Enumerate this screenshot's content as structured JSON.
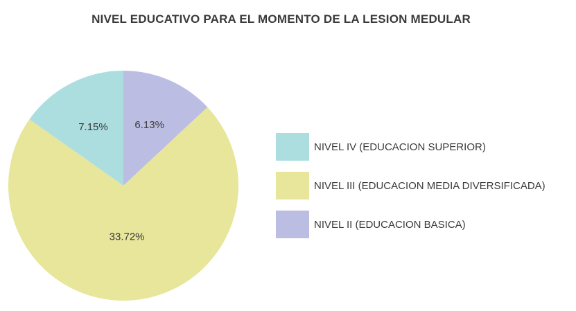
{
  "chart_data": {
    "type": "pie",
    "title": "NIVEL EDUCATIVO PARA EL MOMENTO DE LA LESION MEDULAR",
    "slices": [
      {
        "name": "NIVEL II (EDUCACION BASICA)",
        "value": 6.13,
        "label": "6.13%",
        "color": "#bcbde3"
      },
      {
        "name": "NIVEL III (EDUCACION MEDIA DIVERSIFICADA)",
        "value": 33.72,
        "label": "33.72%",
        "color": "#e7e69b"
      },
      {
        "name": "NIVEL IV (EDUCACION SUPERIOR)",
        "value": 7.15,
        "label": "7.15%",
        "color": "#acdee0"
      }
    ],
    "legend": {
      "placement": "right",
      "items": [
        {
          "label": "NIVEL IV (EDUCACION SUPERIOR)",
          "color": "#acdee0"
        },
        {
          "label": "NIVEL III (EDUCACION MEDIA DIVERSIFICADA)",
          "color": "#e7e69b"
        },
        {
          "label": "NIVEL II (EDUCACION BASICA)",
          "color": "#bcbde3"
        }
      ]
    }
  }
}
